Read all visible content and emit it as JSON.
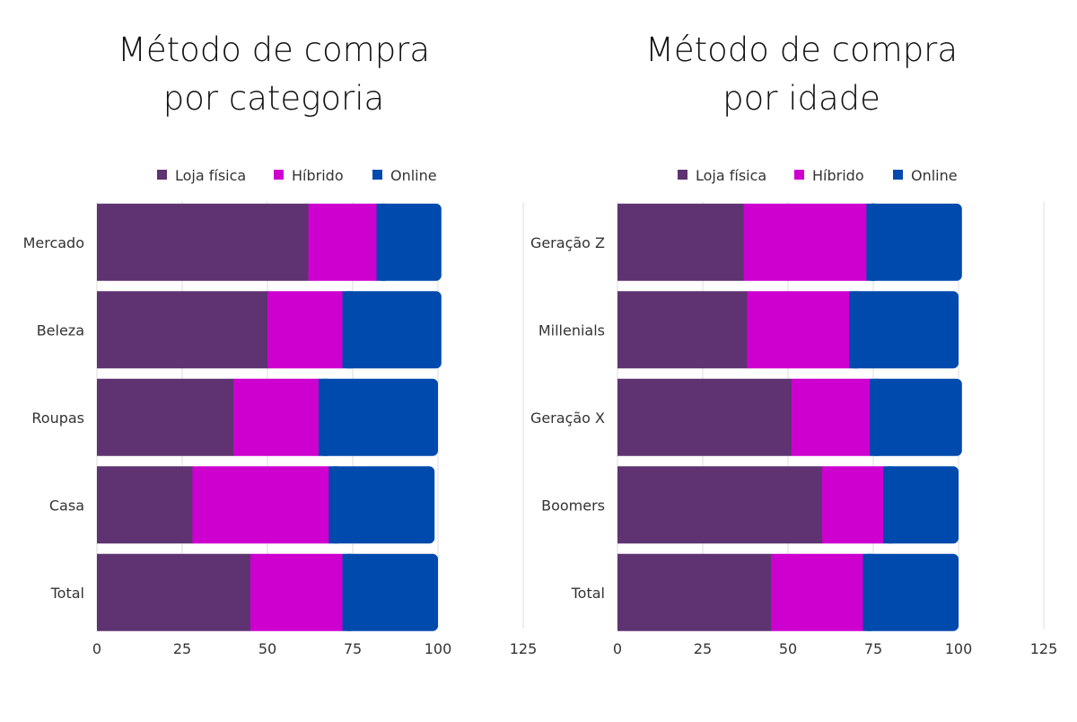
{
  "colors": {
    "Loja física": "#5f3371",
    "Híbrido": "#cd00d0",
    "Online": "#004aad"
  },
  "chart_data": [
    {
      "type": "bar",
      "orientation": "horizontal",
      "stacked": true,
      "title": [
        "Método de compra",
        "por categoria"
      ],
      "categories": [
        "Mercado",
        "Beleza",
        "Roupas",
        "Casa",
        "Total"
      ],
      "series": [
        {
          "name": "Loja física",
          "values": [
            62,
            50,
            40,
            28,
            45
          ]
        },
        {
          "name": "Híbrido",
          "values": [
            20,
            22,
            25,
            40,
            27
          ]
        },
        {
          "name": "Online",
          "values": [
            19,
            29,
            35,
            31,
            28
          ]
        }
      ],
      "xlim": [
        0,
        125
      ],
      "xticks": [
        "0",
        "25",
        "50",
        "75",
        "100",
        "125"
      ],
      "grid": true,
      "legend": "top"
    },
    {
      "type": "bar",
      "orientation": "horizontal",
      "stacked": true,
      "title": [
        "Método de compra",
        "por idade"
      ],
      "categories": [
        "Geração Z",
        "Millenials",
        "Geração X",
        "Boomers",
        "Total"
      ],
      "series": [
        {
          "name": "Loja física",
          "values": [
            37,
            38,
            51,
            60,
            45
          ]
        },
        {
          "name": "Híbrido",
          "values": [
            36,
            30,
            23,
            18,
            27
          ]
        },
        {
          "name": "Online",
          "values": [
            28,
            32,
            27,
            22,
            28
          ]
        }
      ],
      "xlim": [
        0,
        125
      ],
      "xticks": [
        "0",
        "25",
        "50",
        "75",
        "100",
        "125"
      ],
      "grid": true,
      "legend": "top"
    }
  ]
}
